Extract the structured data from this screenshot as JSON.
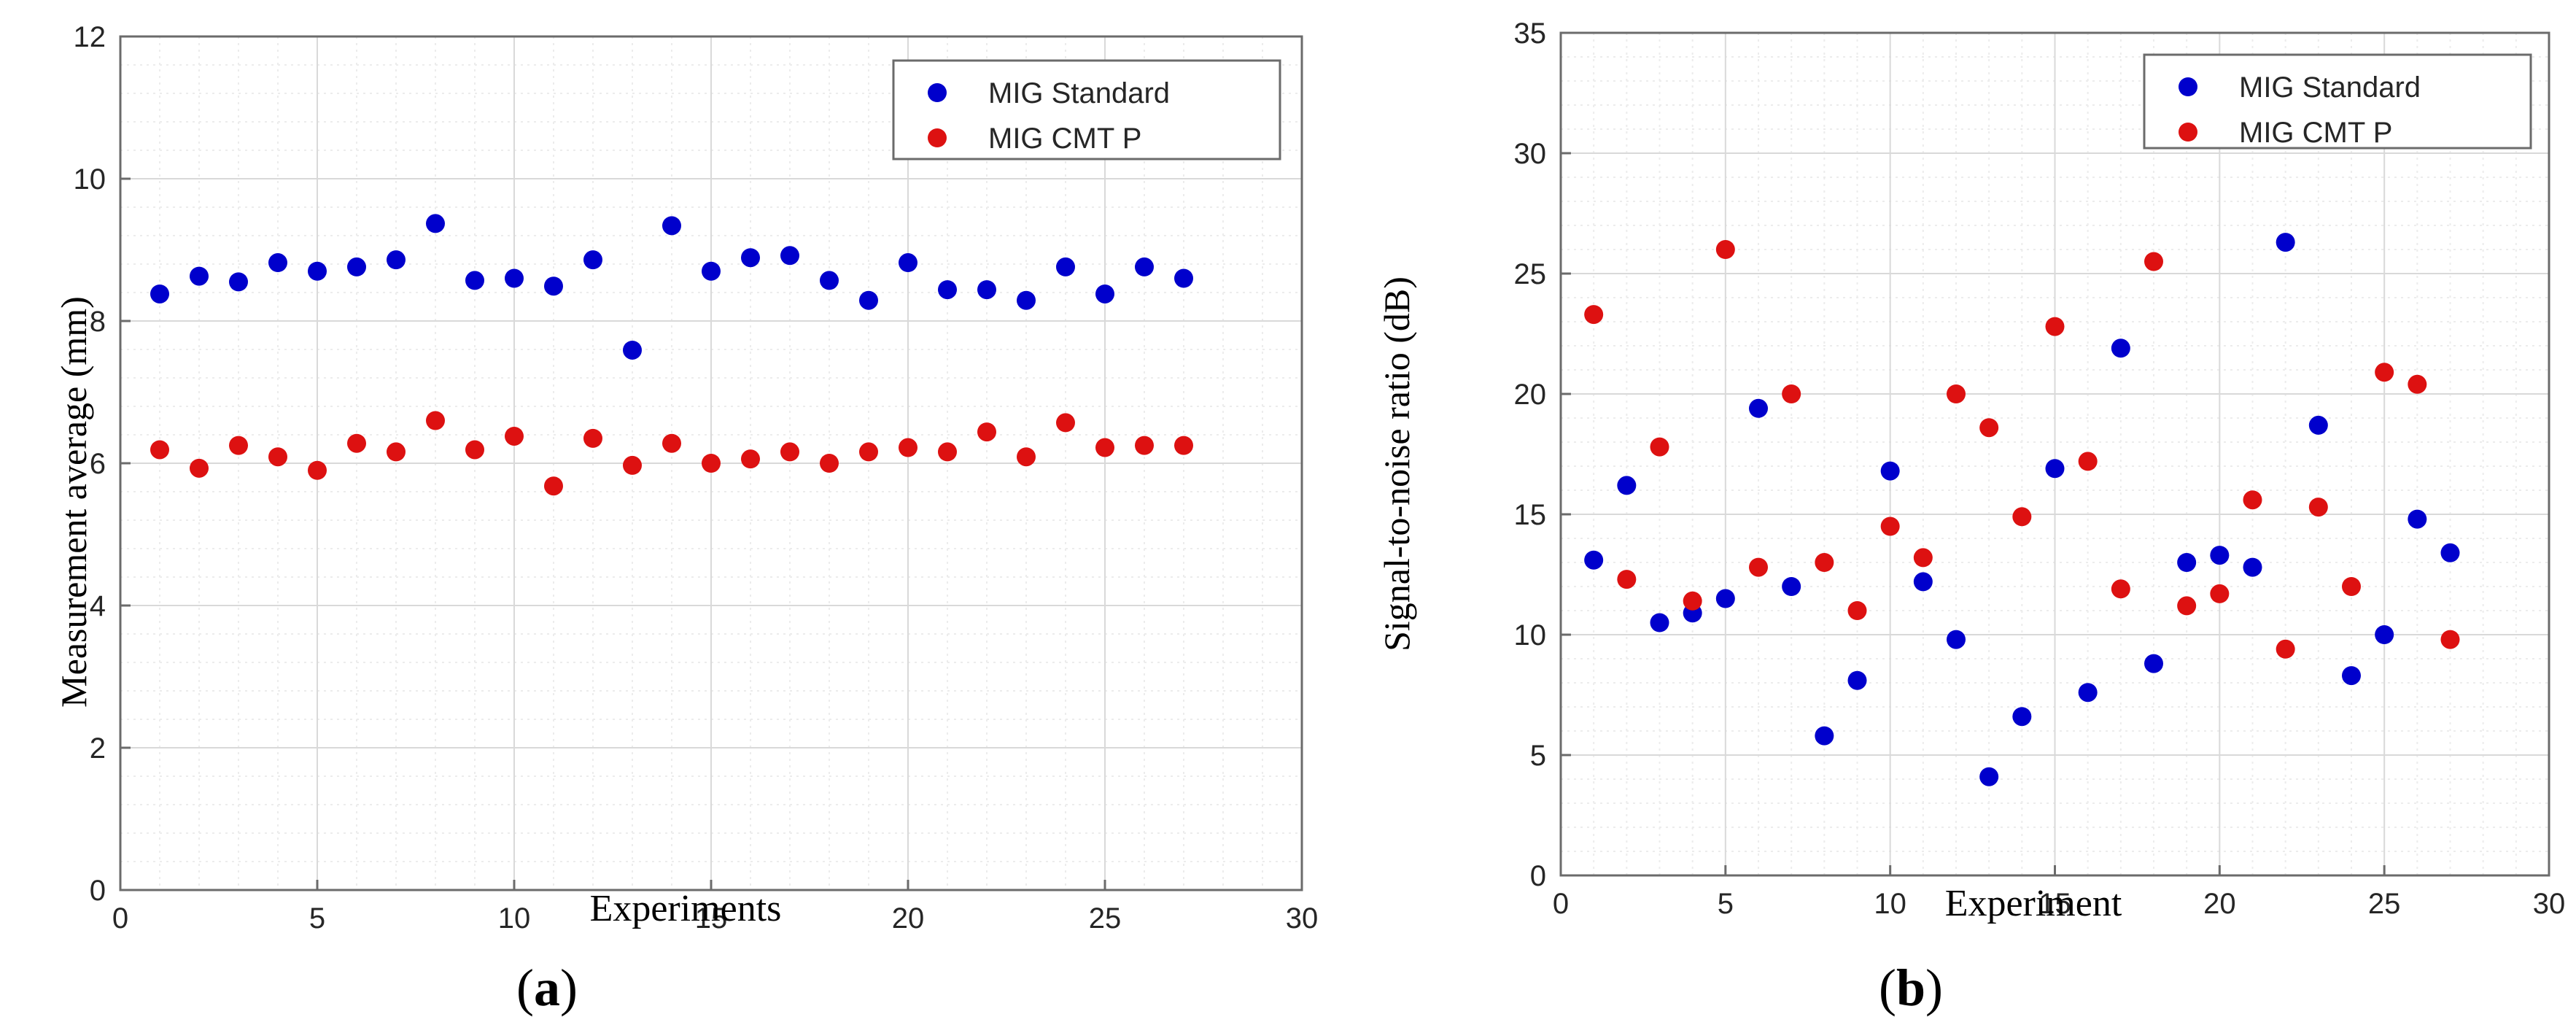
{
  "colors": {
    "standard": "#0000cc",
    "cmt": "#dd1111",
    "grid_major": "#d9d9d9",
    "grid_minor": "#ececec",
    "axis": "#6b6b6b"
  },
  "chart_data": [
    {
      "type": "scatter",
      "caption": {
        "open": "(",
        "letter": "a",
        "close": ")"
      },
      "xlabel": "Experiments",
      "ylabel": "Measurement average (mm)",
      "xlim": [
        0,
        30
      ],
      "ylim": [
        0,
        12
      ],
      "xticks": [
        0,
        5,
        10,
        15,
        20,
        25,
        30
      ],
      "yticks": [
        0,
        2,
        4,
        6,
        8,
        10,
        12
      ],
      "grid": true,
      "legend_position": "top-right",
      "x": [
        1,
        2,
        3,
        4,
        5,
        6,
        7,
        8,
        9,
        10,
        11,
        12,
        13,
        14,
        15,
        16,
        17,
        18,
        19,
        20,
        21,
        22,
        23,
        24,
        25,
        26,
        27
      ],
      "series": [
        {
          "name": "MIG Standard",
          "color": "#0000cc",
          "values": [
            8.38,
            8.63,
            8.55,
            8.82,
            8.7,
            8.76,
            8.86,
            9.37,
            8.57,
            8.6,
            8.49,
            8.86,
            7.59,
            9.34,
            8.7,
            8.89,
            8.92,
            8.57,
            8.29,
            8.82,
            8.44,
            8.44,
            8.29,
            8.76,
            8.38,
            8.76,
            8.6
          ]
        },
        {
          "name": "MIG CMT P",
          "color": "#dd1111",
          "values": [
            6.19,
            5.93,
            6.25,
            6.09,
            5.9,
            6.28,
            6.16,
            6.6,
            6.19,
            6.38,
            5.68,
            6.35,
            5.97,
            6.28,
            6.0,
            6.06,
            6.16,
            6.0,
            6.16,
            6.22,
            6.16,
            6.44,
            6.09,
            6.57,
            6.22,
            6.25,
            6.25
          ]
        }
      ]
    },
    {
      "type": "scatter",
      "caption": {
        "open": "(",
        "letter": "b",
        "close": ")"
      },
      "xlabel": "Experiment",
      "ylabel": "Signal-to-noise ratio (dB)",
      "xlim": [
        0,
        30
      ],
      "ylim": [
        0,
        35
      ],
      "xticks": [
        0,
        5,
        10,
        15,
        20,
        25,
        30
      ],
      "yticks": [
        0,
        5,
        10,
        15,
        20,
        25,
        30,
        35
      ],
      "grid": true,
      "legend_position": "top-right",
      "x": [
        1,
        2,
        3,
        4,
        5,
        6,
        7,
        8,
        9,
        10,
        11,
        12,
        13,
        14,
        15,
        16,
        17,
        18,
        19,
        20,
        21,
        22,
        23,
        24,
        25,
        26,
        27
      ],
      "series": [
        {
          "name": "MIG Standard",
          "color": "#0000cc",
          "values": [
            13.1,
            16.2,
            10.5,
            10.9,
            11.5,
            19.4,
            12.0,
            5.8,
            8.1,
            16.8,
            12.2,
            9.8,
            4.1,
            6.6,
            16.9,
            7.6,
            21.9,
            8.8,
            13.0,
            13.3,
            12.8,
            26.3,
            18.7,
            8.3,
            10.0,
            14.8,
            13.4
          ]
        },
        {
          "name": "MIG CMT P",
          "color": "#dd1111",
          "values": [
            23.3,
            12.3,
            17.8,
            11.4,
            26.0,
            12.8,
            20.0,
            13.0,
            11.0,
            14.5,
            13.2,
            20.0,
            18.6,
            14.9,
            22.8,
            17.2,
            11.9,
            25.5,
            11.2,
            11.7,
            15.6,
            9.4,
            15.3,
            12.0,
            20.9,
            20.4,
            9.8
          ]
        }
      ]
    }
  ]
}
